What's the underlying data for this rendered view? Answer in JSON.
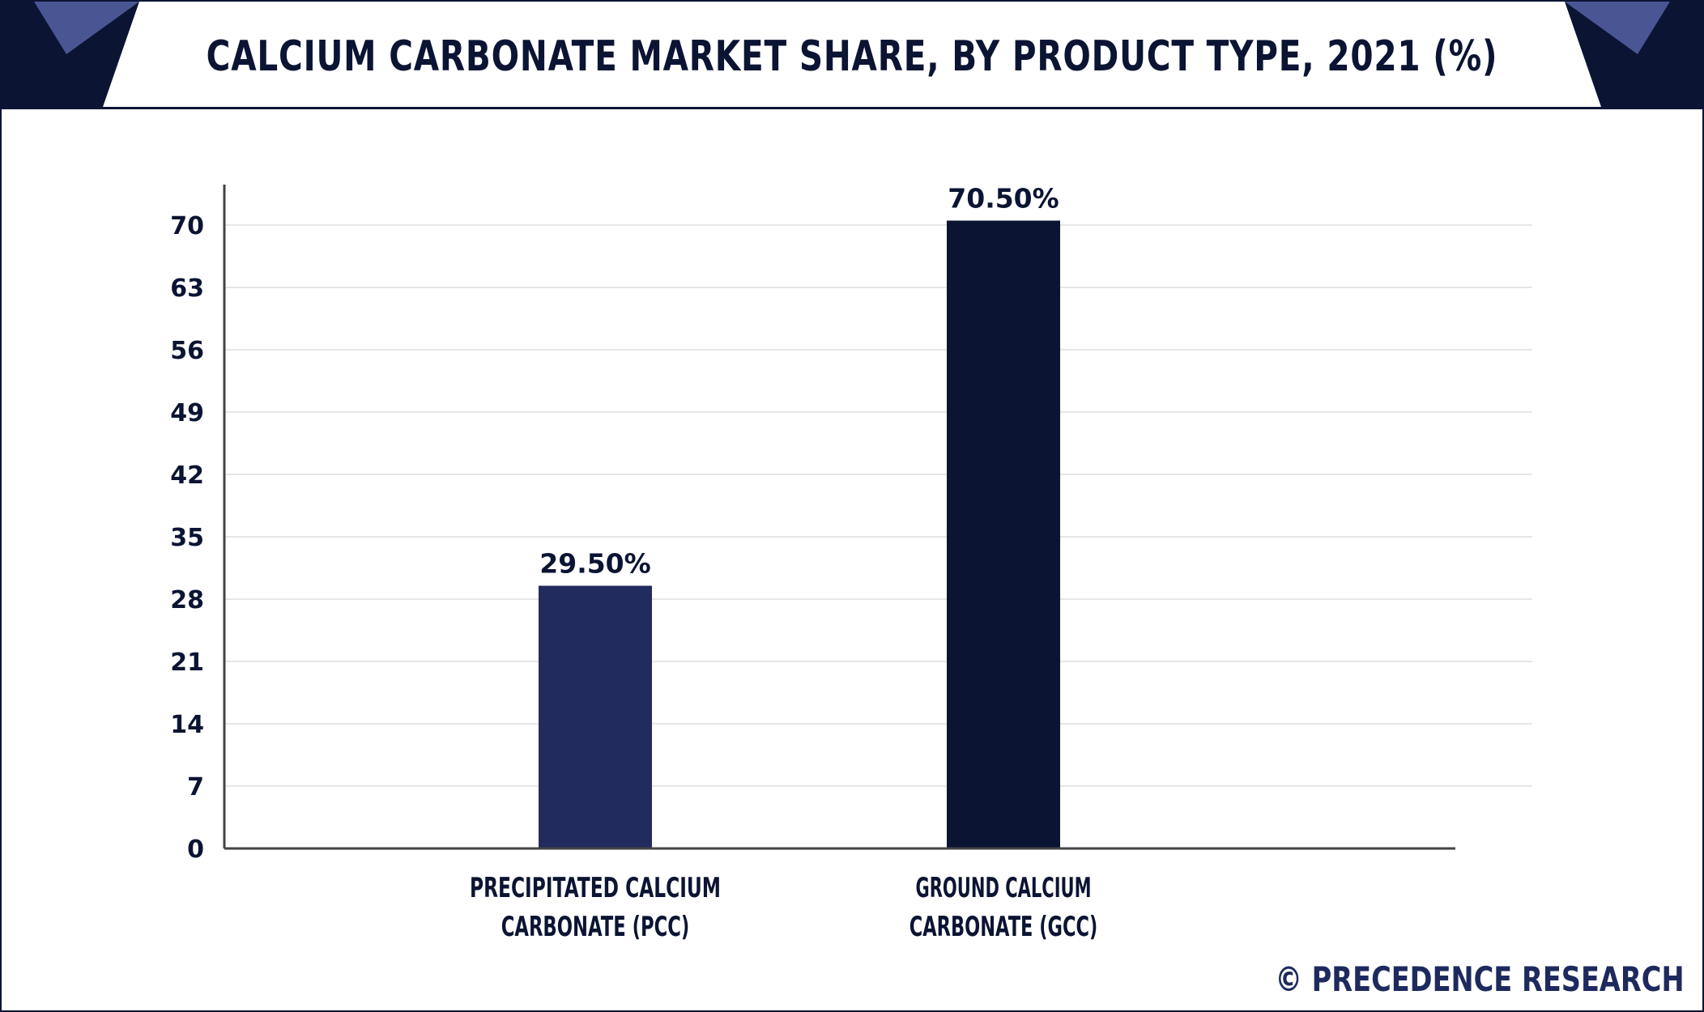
{
  "title": "CALCIUM CARBONATE MARKET SHARE, BY PRODUCT TYPE, 2021 (%)",
  "brand": "© PRECEDENCE RESEARCH",
  "colors": {
    "frame": "#0b1433",
    "corner_light": "#4a5694",
    "bar_pcc": "#222b5e",
    "bar_gcc": "#0b1533",
    "grid": "#e6e6e6",
    "axis": "#444444"
  },
  "chart_data": {
    "type": "bar",
    "title": "CALCIUM CARBONATE MARKET SHARE, BY PRODUCT TYPE, 2021 (%)",
    "categories": [
      [
        "PRECIPITATED CALCIUM",
        "CARBONATE (PCC)"
      ],
      [
        "GROUND CALCIUM",
        "CARBONATE (GCC)"
      ]
    ],
    "values": [
      29.5,
      70.5
    ],
    "data_labels": [
      "29.50%",
      "70.50%"
    ],
    "bar_colors": [
      "#222b5e",
      "#0b1533"
    ],
    "yticks": [
      0,
      7,
      14,
      21,
      28,
      35,
      42,
      49,
      56,
      63,
      70
    ],
    "ylim": [
      0,
      70
    ],
    "xlabel": "",
    "ylabel": "",
    "grid": true,
    "legend": "none"
  }
}
